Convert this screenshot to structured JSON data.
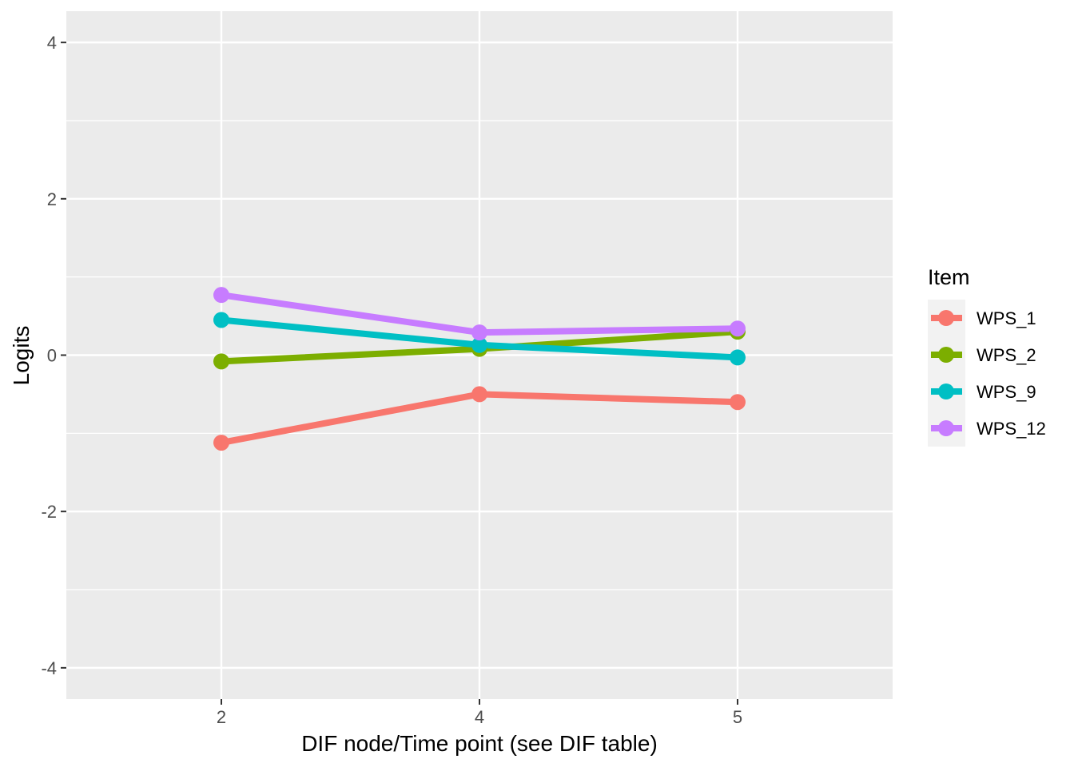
{
  "chart_data": {
    "type": "line",
    "title": "",
    "xlabel": "DIF node/Time point (see DIF table)",
    "ylabel": "Logits",
    "x": [
      "2",
      "4",
      "5"
    ],
    "ylim": [
      -4.4,
      4.4
    ],
    "yticks": [
      -4,
      -2,
      0,
      2,
      4
    ],
    "yticklabels": [
      "-4",
      "-2",
      "0",
      "2",
      "4"
    ],
    "grid": true,
    "legend_title": "Item",
    "legend_position": "right",
    "series": [
      {
        "name": "WPS_1",
        "color": "#F8766D",
        "values": [
          -1.12,
          -0.5,
          -0.6
        ]
      },
      {
        "name": "WPS_2",
        "color": "#7CAE00",
        "values": [
          -0.08,
          0.08,
          0.3
        ]
      },
      {
        "name": "WPS_9",
        "color": "#00BFC4",
        "values": [
          0.45,
          0.13,
          -0.03
        ]
      },
      {
        "name": "WPS_12",
        "color": "#C77CFF",
        "values": [
          0.77,
          0.29,
          0.34
        ]
      }
    ]
  }
}
